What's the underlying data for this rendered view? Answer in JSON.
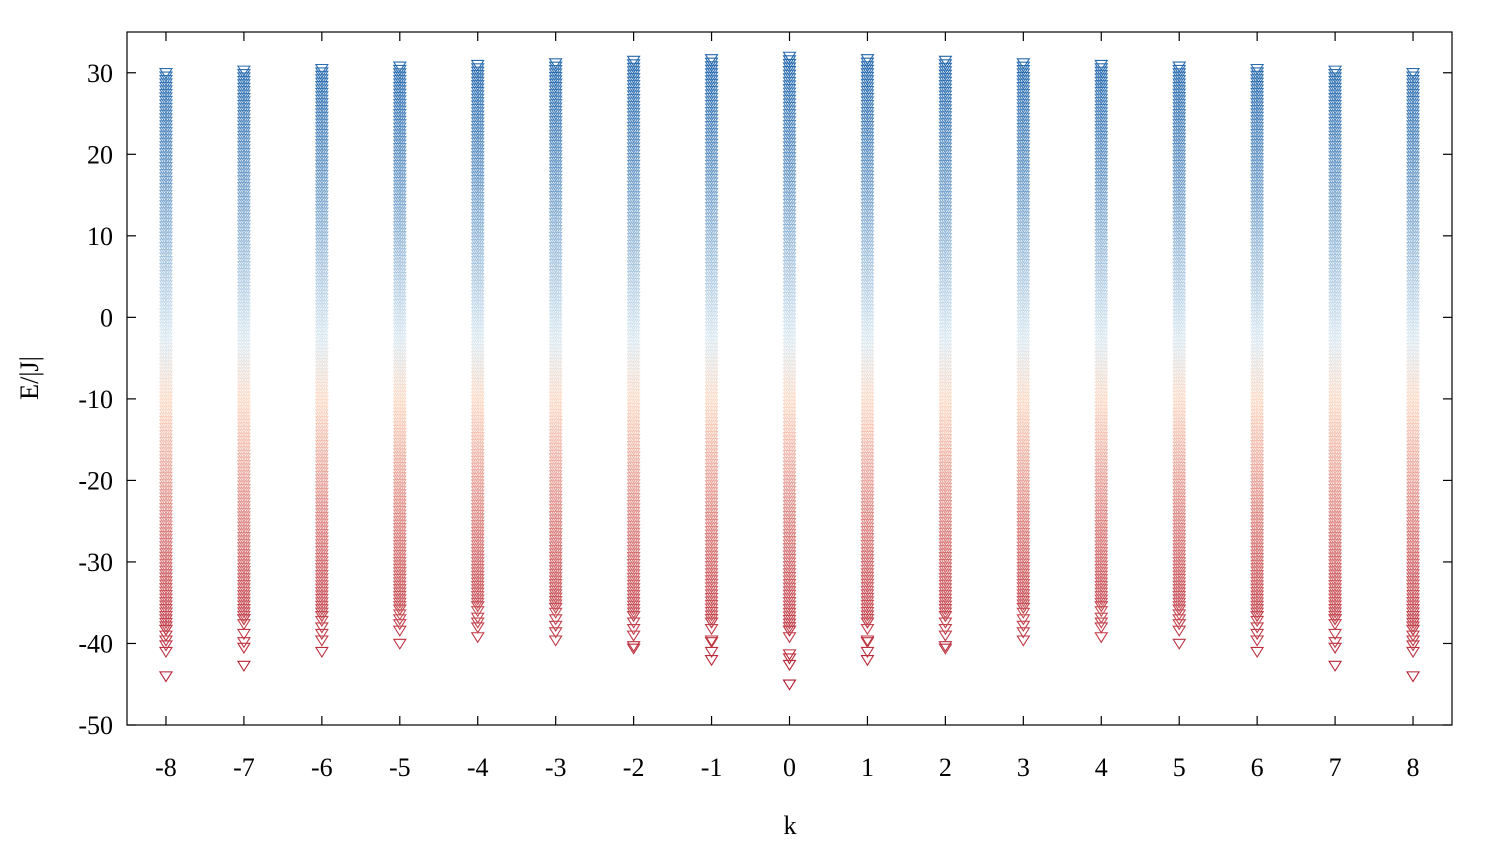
{
  "chart_data": {
    "type": "scatter",
    "marker": "open-down-triangle",
    "xlabel": "k",
    "ylabel": "E/|J|",
    "xlim": [
      -8.5,
      8.5
    ],
    "ylim": [
      -50,
      35
    ],
    "xticks": [
      -8,
      -7,
      -6,
      -5,
      -4,
      -3,
      -2,
      -1,
      0,
      1,
      2,
      3,
      4,
      5,
      6,
      7,
      8
    ],
    "xtick_labels": [
      "-8",
      "-7",
      "-6",
      "-5",
      "-4",
      "-3",
      "-2",
      "-1",
      "0",
      "1",
      "2",
      "3",
      "4",
      "5",
      "6",
      "7",
      "8"
    ],
    "yticks": [
      -50,
      -40,
      -30,
      -20,
      -10,
      0,
      10,
      20,
      30
    ],
    "ytick_labels": [
      "-50",
      "-40",
      "-30",
      "-20",
      "-10",
      "0",
      "10",
      "20",
      "30"
    ],
    "grid": false,
    "colormap": {
      "low": "#b2182b",
      "mid_low": "#fddbc7",
      "mid": "#dceaf2",
      "high": "#2166ac"
    },
    "series": [
      {
        "k": -8,
        "e_min": -44.0,
        "e_max": 30.0,
        "ground_states": [
          -44.0,
          -41.0,
          -40.2,
          -39.6,
          -39.0,
          -38.3
        ]
      },
      {
        "k": -7,
        "e_min": -42.7,
        "e_max": 30.3,
        "ground_states": [
          -42.7,
          -40.5,
          -39.8,
          -38.8,
          -37.6,
          -37.0
        ]
      },
      {
        "k": -6,
        "e_min": -41.0,
        "e_max": 30.5,
        "ground_states": [
          -41.0,
          -39.6,
          -38.8,
          -38.0,
          -37.2,
          -36.6
        ]
      },
      {
        "k": -5,
        "e_min": -40.0,
        "e_max": 30.8,
        "ground_states": [
          -40.0,
          -38.4,
          -37.6,
          -37.0,
          -36.4,
          -35.8
        ]
      },
      {
        "k": -4,
        "e_min": -39.2,
        "e_max": 31.0,
        "ground_states": [
          -39.2,
          -38.0,
          -37.4,
          -36.8,
          -36.0,
          -35.4
        ]
      },
      {
        "k": -3,
        "e_min": -39.6,
        "e_max": 31.2,
        "ground_states": [
          -39.6,
          -38.6,
          -37.8,
          -37.0,
          -36.2,
          -35.6
        ]
      },
      {
        "k": -2,
        "e_min": -40.6,
        "e_max": 31.5,
        "ground_states": [
          -40.6,
          -40.3,
          -39.0,
          -38.2,
          -37.4,
          -36.6
        ]
      },
      {
        "k": -1,
        "e_min": -42.0,
        "e_max": 31.7,
        "ground_states": [
          -42.0,
          -41.0,
          -39.8,
          -39.6,
          -38.2,
          -37.4
        ]
      },
      {
        "k": 0,
        "e_min": -45.0,
        "e_max": 32.0,
        "ground_states": [
          -45.0,
          -42.6,
          -41.8,
          -41.3,
          -39.2,
          -38.4
        ]
      },
      {
        "k": 1,
        "e_min": -42.0,
        "e_max": 31.7,
        "ground_states": [
          -42.0,
          -41.0,
          -39.8,
          -39.6,
          -38.2,
          -37.4
        ]
      },
      {
        "k": 2,
        "e_min": -40.6,
        "e_max": 31.5,
        "ground_states": [
          -40.6,
          -40.3,
          -39.0,
          -38.2,
          -37.4,
          -36.6
        ]
      },
      {
        "k": 3,
        "e_min": -39.6,
        "e_max": 31.2,
        "ground_states": [
          -39.6,
          -38.6,
          -37.8,
          -37.0,
          -36.2,
          -35.6
        ]
      },
      {
        "k": 4,
        "e_min": -39.2,
        "e_max": 31.0,
        "ground_states": [
          -39.2,
          -38.0,
          -37.4,
          -36.8,
          -36.0,
          -35.4
        ]
      },
      {
        "k": 5,
        "e_min": -40.0,
        "e_max": 30.8,
        "ground_states": [
          -40.0,
          -38.4,
          -37.6,
          -37.0,
          -36.4,
          -35.8
        ]
      },
      {
        "k": 6,
        "e_min": -41.0,
        "e_max": 30.5,
        "ground_states": [
          -41.0,
          -39.6,
          -38.8,
          -38.0,
          -37.2,
          -36.6
        ]
      },
      {
        "k": 7,
        "e_min": -42.7,
        "e_max": 30.3,
        "ground_states": [
          -42.7,
          -40.5,
          -39.8,
          -38.8,
          -37.6,
          -37.0
        ]
      },
      {
        "k": 8,
        "e_min": -44.0,
        "e_max": 30.0,
        "ground_states": [
          -44.0,
          -41.0,
          -40.2,
          -39.6,
          -39.0,
          -38.3
        ]
      }
    ]
  }
}
